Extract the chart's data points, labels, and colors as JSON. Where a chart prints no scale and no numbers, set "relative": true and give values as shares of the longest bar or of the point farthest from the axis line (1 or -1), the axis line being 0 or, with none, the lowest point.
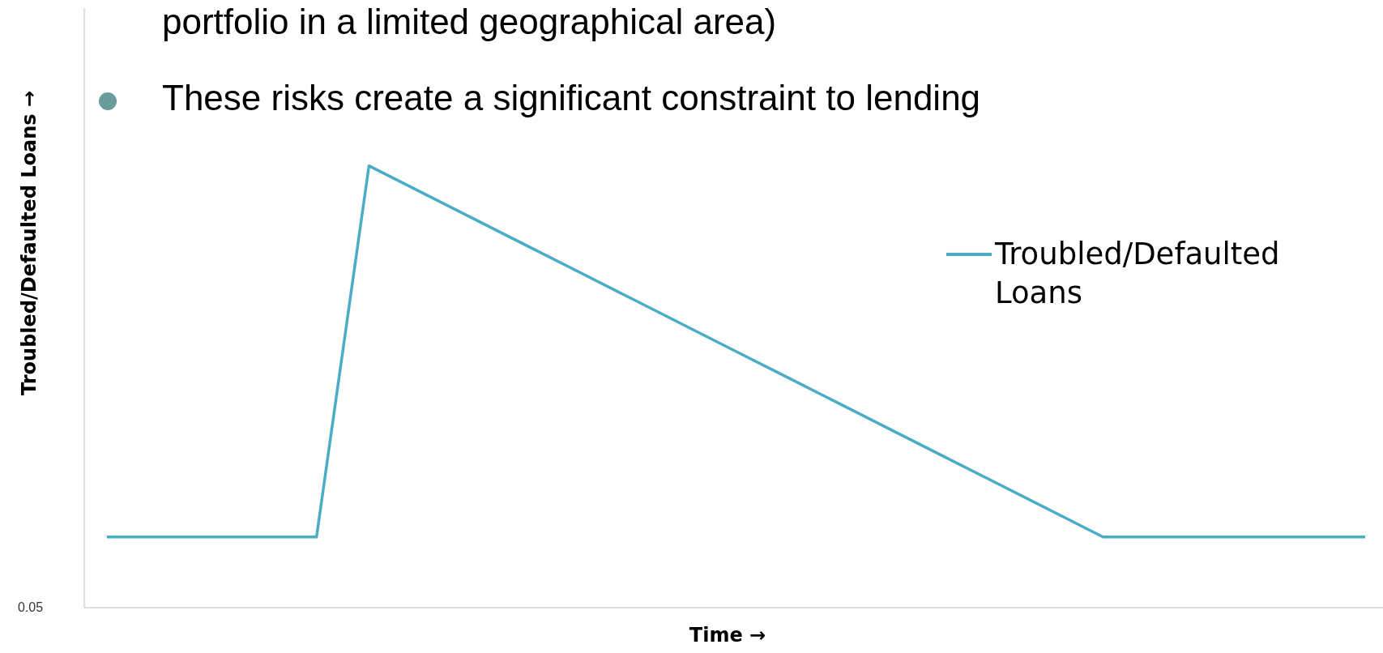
{
  "chart_data": {
    "type": "line",
    "relative": true,
    "ylabel": "Troubled/Defaulted Loans →",
    "xlabel": "Time →",
    "annotations": [
      "portfolio in a limited geographical area)",
      "These risks create a significant constraint to lending",
      "0.05"
    ],
    "categories": [
      null,
      null,
      null,
      null,
      null,
      null,
      null,
      null,
      null,
      null,
      null,
      null,
      null,
      null,
      null,
      null,
      null,
      null,
      null,
      null,
      null,
      null,
      null,
      null,
      null
    ],
    "series": [
      {
        "name": "Troubled/Defaulted Loans",
        "color": "#4bacc6",
        "values": [
          0.16,
          0.16,
          0.16,
          0.16,
          0.16,
          1,
          0.94,
          0.88,
          0.82,
          0.76,
          0.7,
          0.64,
          0.58,
          0.52,
          0.46,
          0.4,
          0.34,
          0.28,
          0.22,
          0.16,
          0.16,
          0.16,
          0.16,
          0.16,
          0.16
        ]
      }
    ],
    "legend": "right",
    "grid": false,
    "marker": "none",
    "line_style": "solid"
  }
}
